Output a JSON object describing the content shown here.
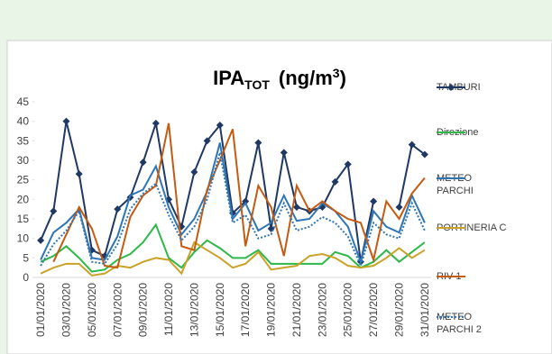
{
  "chart_data": {
    "type": "line",
    "title_parts": [
      "IPA",
      "TOT",
      "(ng/m",
      "3",
      ")"
    ],
    "categories": [
      "01/01/2020",
      null,
      "03/01/2020",
      null,
      "05/01/2020",
      null,
      "07/01/2020",
      null,
      "09/01/2020",
      null,
      "11/01/2020",
      null,
      "13/01/2020",
      null,
      "15/01/2020",
      null,
      "17/01/2020",
      null,
      "19/01/2020",
      null,
      "21/01/2020",
      null,
      "23/01/2020",
      null,
      "25/01/2020",
      null,
      "27/01/2020",
      null,
      "29/01/2020",
      null,
      "31/01/2020"
    ],
    "ylim": [
      0,
      45
    ],
    "yticks": [
      0,
      5,
      10,
      15,
      20,
      25,
      30,
      35,
      40,
      45
    ],
    "legend": "right",
    "series": [
      {
        "name": "TAMBURI",
        "color": "#1f3864",
        "marker": "diamond",
        "values": [
          9.5,
          17,
          40,
          26.5,
          7,
          5.5,
          17.5,
          20.5,
          29.5,
          39.5,
          20,
          13,
          27,
          35,
          39,
          16.5,
          19.5,
          34.5,
          12.5,
          32,
          18,
          17,
          18,
          24.5,
          29,
          4,
          19.5,
          null,
          18,
          34,
          31.5
        ]
      },
      {
        "name": "Direzione",
        "color": "#2eb84a",
        "values": [
          4,
          5.5,
          8,
          5,
          1.5,
          2,
          4.5,
          6,
          9,
          13.5,
          5,
          2.5,
          6.5,
          9.5,
          7.5,
          5,
          5,
          7,
          3.5,
          3.5,
          3.5,
          3.5,
          3.5,
          6.5,
          5.5,
          2.5,
          4,
          7,
          4,
          6.5,
          9
        ]
      },
      {
        "name": "METEO PARCHI",
        "color": "#2e75b6",
        "values": [
          4.5,
          11.5,
          14,
          17.5,
          5,
          4.5,
          10.5,
          21,
          22.5,
          28.5,
          18,
          11,
          15,
          22,
          34.5,
          15,
          19,
          12,
          14,
          21,
          14.5,
          15,
          19,
          17,
          13,
          4,
          17,
          13,
          11.5,
          21,
          14
        ]
      },
      {
        "name": "PORTINERIA C",
        "color": "#c9a227",
        "values": [
          1,
          2.5,
          3.5,
          3.5,
          0.5,
          1,
          3,
          2.5,
          4,
          5,
          4.5,
          1,
          9,
          7,
          5,
          2.5,
          3.5,
          6.5,
          2,
          2.5,
          3,
          5.5,
          6,
          5,
          3,
          2.5,
          3,
          5,
          7.5,
          5,
          7
        ]
      },
      {
        "name": "RIV 1",
        "color": "#c55a11",
        "values": [
          null,
          4,
          11,
          18,
          12.5,
          3,
          2.5,
          15.5,
          21,
          23.5,
          39.5,
          8,
          7,
          22.5,
          30,
          38,
          8,
          23.5,
          18,
          5.5,
          23.5,
          17,
          19.5,
          17,
          15,
          14,
          4.5,
          19.5,
          15,
          21.5,
          25.5
        ]
      },
      {
        "name": "METEO PARCHI 2",
        "color": "#2e75b6",
        "dash": "dotted",
        "values": [
          3,
          8.5,
          12,
          17,
          4,
          3.5,
          8.5,
          17.5,
          21.5,
          24,
          16,
          9.5,
          13,
          20,
          32,
          14,
          16,
          10,
          11,
          19,
          12,
          13,
          15.5,
          14,
          10.5,
          3,
          14,
          11,
          10,
          19,
          12
        ]
      }
    ]
  }
}
